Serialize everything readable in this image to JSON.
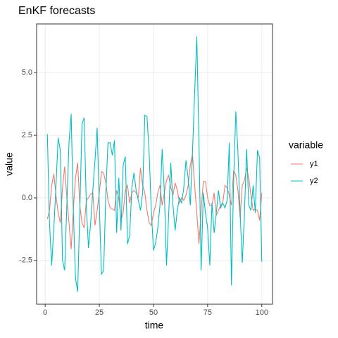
{
  "chart_data": {
    "type": "line",
    "title": "EnKF forecasts",
    "x_label": "time",
    "y_label": "value",
    "legend_title": "variable",
    "x": [
      1,
      2,
      3,
      4,
      5,
      6,
      7,
      8,
      9,
      10,
      11,
      12,
      13,
      14,
      15,
      16,
      17,
      18,
      19,
      20,
      21,
      22,
      23,
      24,
      25,
      26,
      27,
      28,
      29,
      30,
      31,
      32,
      33,
      34,
      35,
      36,
      37,
      38,
      39,
      40,
      41,
      42,
      43,
      44,
      45,
      46,
      47,
      48,
      49,
      50,
      51,
      52,
      53,
      54,
      55,
      56,
      57,
      58,
      59,
      60,
      61,
      62,
      63,
      64,
      65,
      66,
      67,
      68,
      69,
      70,
      71,
      72,
      73,
      74,
      75,
      76,
      77,
      78,
      79,
      80,
      81,
      82,
      83,
      84,
      85,
      86,
      87,
      88,
      89,
      90,
      91,
      92,
      93,
      94,
      95,
      96,
      97,
      98,
      99,
      100
    ],
    "series": [
      {
        "name": "y1",
        "color": "#F8766D",
        "values": [
          -0.85,
          -0.5,
          0.5,
          0.95,
          0.1,
          -0.6,
          -1.0,
          0.4,
          1.25,
          0.0,
          -1.0,
          -2.05,
          -0.5,
          0.8,
          1.4,
          -0.3,
          -1.0,
          -1.2,
          -0.1,
          0.0,
          0.15,
          0.2,
          -1.1,
          -0.5,
          0.2,
          1.05,
          1.0,
          0.6,
          -0.1,
          -0.4,
          -0.45,
          -0.5,
          0.3,
          0.0,
          -0.9,
          -0.6,
          0.3,
          0.5,
          -0.2,
          0.2,
          0.3,
          0.2,
          0.0,
          1.2,
          0.5,
          0.2,
          -0.5,
          -1.0,
          -1.1,
          -0.6,
          -0.3,
          0.2,
          0.5,
          -0.3,
          0.2,
          0.7,
          0.9,
          0.4,
          0.1,
          0.6,
          0.3,
          -0.2,
          0.0,
          -0.1,
          0.1,
          0.5,
          1.3,
          1.75,
          0.5,
          -0.6,
          -1.85,
          -0.5,
          0.65,
          0.65,
          0.0,
          -0.3,
          -0.3,
          0.2,
          -0.7,
          -0.5,
          -0.3,
          -0.2,
          0.5,
          0.4,
          0.1,
          -0.3,
          1.1,
          0.9,
          0.3,
          -0.8,
          0.5,
          0.7,
          1.2,
          0.8,
          0.1,
          -0.5,
          -0.45,
          -0.5,
          -0.9,
          0.2
        ]
      },
      {
        "name": "y2",
        "color": "#00BFC4",
        "values": [
          2.55,
          -1.0,
          -2.7,
          -1.2,
          0.5,
          2.4,
          1.9,
          -2.5,
          -2.9,
          -0.3,
          2.2,
          3.35,
          -0.5,
          -3.2,
          -3.75,
          -0.5,
          2.95,
          3.2,
          -0.3,
          -2.0,
          -1.0,
          0.3,
          1.5,
          2.8,
          -0.3,
          -3.05,
          -2.9,
          0.2,
          2.2,
          2.2,
          1.7,
          2.3,
          -1.4,
          0.8,
          -1.3,
          1.3,
          1.65,
          -1.85,
          -1.5,
          0.4,
          1.0,
          0.3,
          -0.1,
          -0.5,
          0.2,
          3.3,
          3.25,
          1.8,
          -0.5,
          -2.1,
          -1.8,
          -1.2,
          -0.3,
          1.95,
          0.3,
          -2.7,
          -0.7,
          1.4,
          -0.3,
          -1.3,
          -0.5,
          0.0,
          -0.2,
          0.4,
          1.5,
          0.8,
          -0.3,
          1.8,
          4.2,
          6.45,
          2.2,
          -2.9,
          0.2,
          -0.6,
          -1.2,
          -2.7,
          -0.2,
          -1.4,
          -0.6,
          0.3,
          -0.4,
          -0.2,
          -0.4,
          -0.1,
          2.2,
          -3.5,
          0.7,
          3.45,
          1.8,
          -0.6,
          -2.6,
          -0.6,
          1.95,
          -0.3,
          -0.5,
          0.5,
          -0.6,
          1.9,
          1.6,
          -2.55
        ]
      }
    ],
    "xlim": [
      -3.95,
      104.95
    ],
    "xticks": [
      0,
      25,
      50,
      75,
      100
    ],
    "ylim": [
      -4.25,
      6.95
    ],
    "yticks": [
      -2.5,
      {
        "value": 0,
        "label": "0.0"
      },
      2.5,
      {
        "value": 5,
        "label": "5.0"
      }
    ],
    "grid": true
  }
}
